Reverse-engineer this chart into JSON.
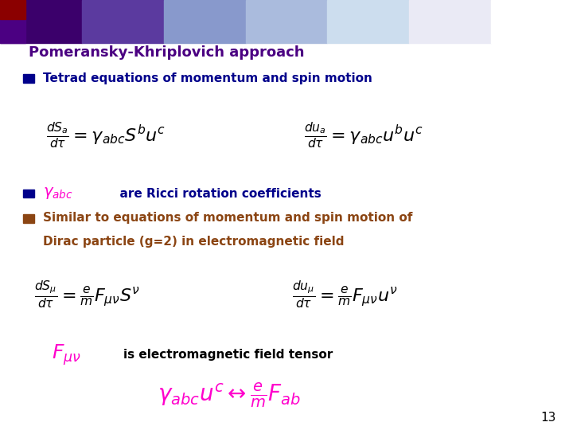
{
  "background_color": "#ffffff",
  "title": "Pomeransky-Khriplovich approach",
  "title_color": "#4B0082",
  "title_fontsize": 13,
  "bullet_color_blue": "#00008B",
  "bullet_color_brown": "#8B4513",
  "bullet1_text": "Tetrad equations of momentum and spin motion",
  "bullet2_text": "  are Ricci rotation coefficients",
  "bullet3_line1": "Similar to equations of momentum and spin motion of",
  "bullet3_line2": "Dirac particle (g=2) in electromagnetic field",
  "em_text": "is electromagnetic field tensor",
  "page_number": "13",
  "grad_colors": [
    "#3B006B",
    "#5B3A9F",
    "#8899CC",
    "#AABBDD",
    "#CCDDEE",
    "#EAEAF5",
    "#ffffff"
  ],
  "corner_color_top": "#4B0082",
  "corner_color_bot": "#8B0000",
  "eq_color": "#000000",
  "magenta": "#FF00CC"
}
